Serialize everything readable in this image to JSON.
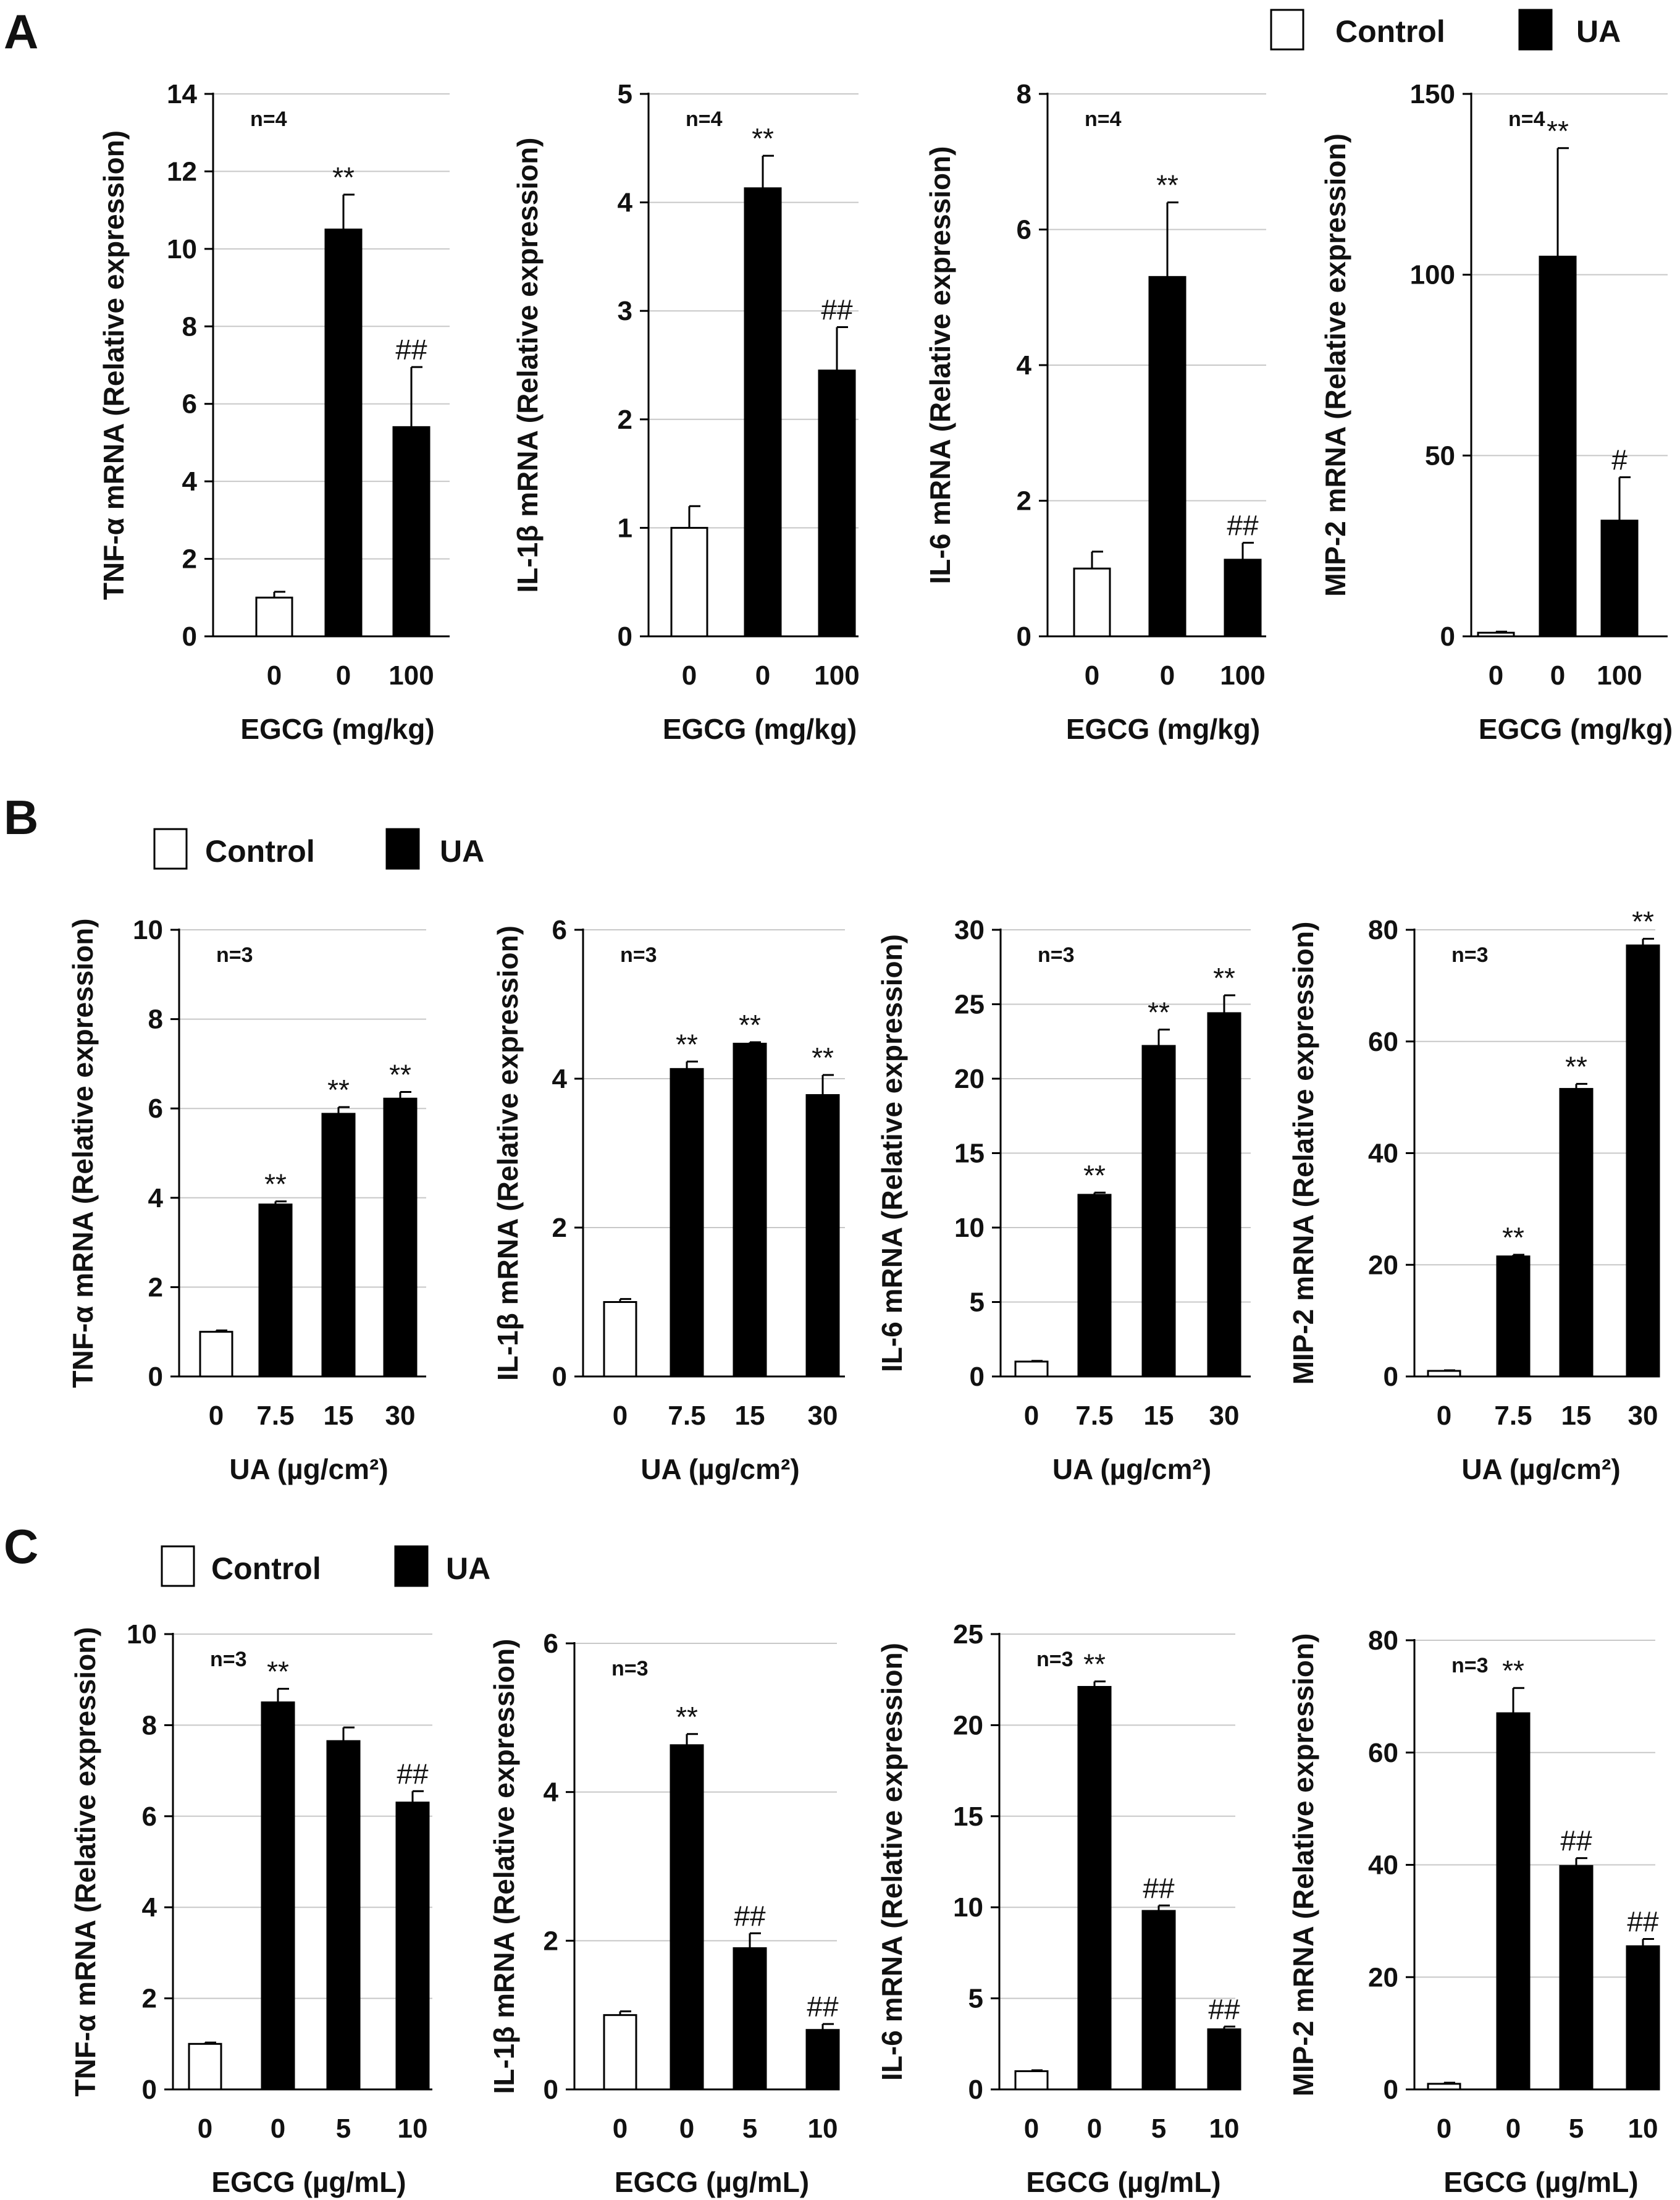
{
  "panels": {
    "A": {
      "label": "A",
      "legend": {
        "control": "Control",
        "ua": "UA"
      }
    },
    "B": {
      "label": "B",
      "legend": {
        "control": "Control",
        "ua": "UA"
      }
    },
    "C": {
      "label": "C",
      "legend": {
        "control": "Control",
        "ua": "UA"
      }
    }
  },
  "colors": {
    "control": "#ffffff",
    "ua": "#000000",
    "grid": "#c8c8c8"
  },
  "chart_data": [
    {
      "id": "A1",
      "type": "bar",
      "panel": "A",
      "ylabel": "TNF-α mRNA (Relative expression)",
      "xlabel": "EGCG (mg/kg)",
      "categories": [
        "0",
        "0",
        "100"
      ],
      "values": [
        1.0,
        10.5,
        5.4
      ],
      "errors": [
        0.15,
        0.9,
        1.55
      ],
      "fill": [
        "control",
        "ua",
        "ua"
      ],
      "sig": [
        "",
        "**",
        "##"
      ],
      "ylim": [
        0,
        14
      ],
      "yticks": [
        0,
        2,
        4,
        6,
        8,
        10,
        12,
        14
      ],
      "n": "n=4"
    },
    {
      "id": "A2",
      "type": "bar",
      "panel": "A",
      "ylabel": "IL-1β mRNA (Relative expression)",
      "xlabel": "EGCG (mg/kg)",
      "categories": [
        "0",
        "0",
        "100"
      ],
      "values": [
        1.0,
        4.13,
        2.45
      ],
      "errors": [
        0.2,
        0.3,
        0.4
      ],
      "fill": [
        "control",
        "ua",
        "ua"
      ],
      "sig": [
        "",
        "**",
        "##"
      ],
      "ylim": [
        0,
        5
      ],
      "yticks": [
        0,
        1,
        2,
        3,
        4,
        5
      ],
      "n": "n=4"
    },
    {
      "id": "A3",
      "type": "bar",
      "panel": "A",
      "ylabel": "IL-6 mRNA (Relative expression)",
      "xlabel": "EGCG (mg/kg)",
      "categories": [
        "0",
        "0",
        "100"
      ],
      "values": [
        1.0,
        5.3,
        1.13
      ],
      "errors": [
        0.25,
        1.1,
        0.25
      ],
      "fill": [
        "control",
        "ua",
        "ua"
      ],
      "sig": [
        "",
        "**",
        "##"
      ],
      "ylim": [
        0,
        8
      ],
      "yticks": [
        0,
        2,
        4,
        6,
        8
      ],
      "n": "n=4"
    },
    {
      "id": "A4",
      "type": "bar",
      "panel": "A",
      "ylabel": "MIP-2 mRNA (Relative expression)",
      "xlabel": "EGCG (mg/kg)",
      "categories": [
        "0",
        "0",
        "100"
      ],
      "values": [
        1.0,
        105,
        32
      ],
      "errors": [
        0.3,
        30,
        12
      ],
      "fill": [
        "control",
        "ua",
        "ua"
      ],
      "sig": [
        "",
        "**",
        "#"
      ],
      "ylim": [
        0,
        150
      ],
      "yticks": [
        0,
        50,
        100,
        150
      ],
      "n": "n=4"
    },
    {
      "id": "B1",
      "type": "bar",
      "panel": "B",
      "ylabel": "TNF-α mRNA (Relative expression)",
      "xlabel": "UA (µg/cm²)",
      "categories": [
        "0",
        "7.5",
        "15",
        "30"
      ],
      "values": [
        1.0,
        3.85,
        5.88,
        6.22
      ],
      "errors": [
        0.03,
        0.07,
        0.15,
        0.15
      ],
      "fill": [
        "control",
        "ua",
        "ua",
        "ua"
      ],
      "sig": [
        "",
        "**",
        "**",
        "**"
      ],
      "ylim": [
        0,
        10
      ],
      "yticks": [
        0,
        2,
        4,
        6,
        8,
        10
      ],
      "n": "n=3"
    },
    {
      "id": "B2",
      "type": "bar",
      "panel": "B",
      "ylabel": "IL-1β mRNA (Relative expression)",
      "xlabel": "UA (µg/cm²)",
      "categories": [
        "0",
        "7.5",
        "15",
        "30"
      ],
      "values": [
        1.0,
        4.13,
        4.47,
        3.78
      ],
      "errors": [
        0.04,
        0.1,
        0.02,
        0.27
      ],
      "fill": [
        "control",
        "ua",
        "ua",
        "ua"
      ],
      "sig": [
        "",
        "**",
        "**",
        "**"
      ],
      "ylim": [
        0,
        6
      ],
      "yticks": [
        0,
        2,
        4,
        6
      ],
      "n": "n=3"
    },
    {
      "id": "B3",
      "type": "bar",
      "panel": "B",
      "ylabel": "IL-6 mRNA (Relative expression)",
      "xlabel": "UA (µg/cm²)",
      "categories": [
        "0",
        "7.5",
        "15",
        "30"
      ],
      "values": [
        1.0,
        12.2,
        22.2,
        24.4
      ],
      "errors": [
        0.05,
        0.15,
        1.1,
        1.2
      ],
      "fill": [
        "control",
        "ua",
        "ua",
        "ua"
      ],
      "sig": [
        "",
        "**",
        "**",
        "**"
      ],
      "ylim": [
        0,
        30
      ],
      "yticks": [
        0,
        5,
        10,
        15,
        20,
        25,
        30
      ],
      "n": "n=3"
    },
    {
      "id": "B4",
      "type": "bar",
      "panel": "B",
      "ylabel": "MIP-2 mRNA (Relative expression)",
      "xlabel": "UA (µg/cm²)",
      "categories": [
        "0",
        "7.5",
        "15",
        "30"
      ],
      "values": [
        1.0,
        21.5,
        51.5,
        77.2
      ],
      "errors": [
        0.1,
        0.3,
        0.9,
        1.2
      ],
      "fill": [
        "control",
        "ua",
        "ua",
        "ua"
      ],
      "sig": [
        "",
        "**",
        "**",
        "**"
      ],
      "ylim": [
        0,
        80
      ],
      "yticks": [
        0,
        20,
        40,
        60,
        80
      ],
      "n": "n=3"
    },
    {
      "id": "C1",
      "type": "bar",
      "panel": "C",
      "ylabel": "TNF-α mRNA (Relative expression)",
      "xlabel": "EGCG (µg/mL)",
      "categories": [
        "0",
        "0",
        "5",
        "10"
      ],
      "values": [
        1.0,
        8.5,
        7.65,
        6.3
      ],
      "errors": [
        0.03,
        0.3,
        0.3,
        0.25
      ],
      "fill": [
        "control",
        "ua",
        "ua",
        "ua"
      ],
      "sig": [
        "",
        "**",
        "",
        "##"
      ],
      "ylim": [
        0,
        10
      ],
      "yticks": [
        0,
        2,
        4,
        6,
        8,
        10
      ],
      "n": "n=3"
    },
    {
      "id": "C2",
      "type": "bar",
      "panel": "C",
      "ylabel": "IL-1β mRNA (Relative expression)",
      "xlabel": "EGCG (µg/mL)",
      "categories": [
        "0",
        "0",
        "5",
        "10"
      ],
      "values": [
        1.0,
        4.63,
        1.9,
        0.8
      ],
      "errors": [
        0.05,
        0.15,
        0.2,
        0.08
      ],
      "fill": [
        "control",
        "ua",
        "ua",
        "ua"
      ],
      "sig": [
        "",
        "**",
        "##",
        "##"
      ],
      "ylim": [
        0,
        6
      ],
      "yticks": [
        0,
        2,
        4,
        6
      ],
      "n": "n=3"
    },
    {
      "id": "C3",
      "type": "bar",
      "panel": "C",
      "ylabel": "IL-6 mRNA (Relative expression)",
      "xlabel": "EGCG (µg/mL)",
      "categories": [
        "0",
        "0",
        "5",
        "10"
      ],
      "values": [
        1.0,
        22.1,
        9.8,
        3.3
      ],
      "errors": [
        0.05,
        0.3,
        0.3,
        0.15
      ],
      "fill": [
        "control",
        "ua",
        "ua",
        "ua"
      ],
      "sig": [
        "",
        "**",
        "##",
        "##"
      ],
      "ylim": [
        0,
        25
      ],
      "yticks": [
        0,
        5,
        10,
        15,
        20,
        25
      ],
      "n": "n=3"
    },
    {
      "id": "C4",
      "type": "bar",
      "panel": "C",
      "ylabel": "MIP-2 mRNA (Relative expression)",
      "xlabel": "EGCG (µg/mL)",
      "categories": [
        "0",
        "0",
        "5",
        "10"
      ],
      "values": [
        1.0,
        67,
        39.8,
        25.5
      ],
      "errors": [
        0.2,
        4.5,
        1.4,
        1.3
      ],
      "fill": [
        "control",
        "ua",
        "ua",
        "ua"
      ],
      "sig": [
        "",
        "**",
        "##",
        "##"
      ],
      "ylim": [
        0,
        80
      ],
      "yticks": [
        0,
        20,
        40,
        60,
        80
      ],
      "n": "n=3"
    }
  ]
}
